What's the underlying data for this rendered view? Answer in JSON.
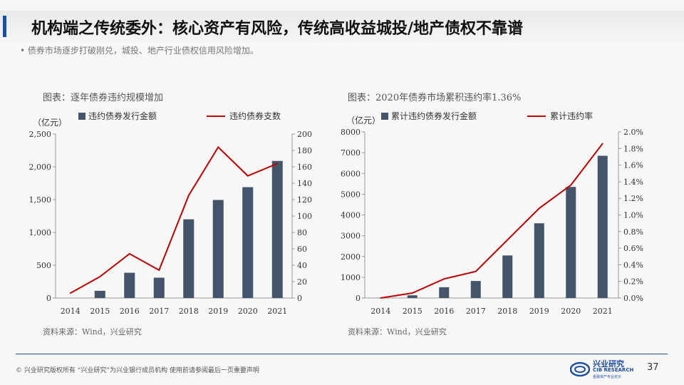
{
  "header": {
    "title": "机构端之传统委外：核心资产有风险，传统高收益城投/地产债权不靠谱",
    "bullet": "• 债券市场逐步打破刚兑，城投、地产行业债权信用风险增加。"
  },
  "left_chart": {
    "caption": "图表：逐年债券违约规模增加",
    "source": "资料来源：Wind，兴业研究"
  },
  "right_chart": {
    "caption": "图表：2020年债券市场累积违约率1.36%",
    "source": "资料来源：Wind，兴业研究"
  },
  "chart_data": [
    {
      "type": "bar+line",
      "title": "逐年债券违约规模增加",
      "categories": [
        "2014",
        "2015",
        "2016",
        "2017",
        "2018",
        "2019",
        "2020",
        "2021"
      ],
      "left_axis_unit": "（亿元）",
      "series": [
        {
          "name": "违约债券发行金额",
          "type": "bar",
          "axis": "left",
          "color": "#44546a",
          "values": [
            0,
            110,
            385,
            310,
            1200,
            1495,
            1690,
            2090
          ]
        },
        {
          "name": "违约债券支数",
          "type": "line",
          "axis": "right",
          "color": "#c00000",
          "values": [
            6,
            26,
            54,
            34,
            125,
            184,
            149,
            164
          ]
        }
      ],
      "ylim_left": [
        0,
        2500
      ],
      "yticks_left": [
        "0",
        "500",
        "1,000",
        "1,500",
        "2,000",
        "2,500"
      ],
      "ylim_right": [
        0,
        200
      ],
      "yticks_right": [
        "0",
        "20",
        "40",
        "60",
        "80",
        "100",
        "120",
        "140",
        "160",
        "180",
        "200"
      ],
      "grid": false,
      "legend": "top"
    },
    {
      "type": "bar+line",
      "title": "2020年债券市场累积违约率1.36%",
      "categories": [
        "2014",
        "2015",
        "2016",
        "2017",
        "2018",
        "2019",
        "2020",
        "2021"
      ],
      "left_axis_unit": "（亿元）",
      "series": [
        {
          "name": "累计违约债券发行金额",
          "type": "bar",
          "axis": "left",
          "color": "#44546a",
          "values": [
            10,
            130,
            520,
            820,
            2050,
            3600,
            5350,
            6850
          ]
        },
        {
          "name": "累计违约率",
          "type": "line",
          "axis": "right",
          "color": "#c00000",
          "values": [
            0.0,
            0.06,
            0.23,
            0.32,
            0.7,
            1.08,
            1.36,
            1.86
          ]
        }
      ],
      "ylim_left": [
        0,
        8000
      ],
      "yticks_left": [
        "0",
        "1000",
        "2000",
        "3000",
        "4000",
        "5000",
        "6000",
        "7000",
        "8000"
      ],
      "ylim_right": [
        0,
        2.0
      ],
      "yticks_right": [
        "0.0%",
        "0.2%",
        "0.4%",
        "0.6%",
        "0.8%",
        "1.0%",
        "1.2%",
        "1.4%",
        "1.6%",
        "1.8%",
        "2.0%"
      ],
      "grid": false,
      "legend": "top"
    }
  ],
  "footer": {
    "text": "©  兴业研究版权所有    “兴业研究”为兴业银行成员机构   使用前请参阅最后一页重要声明",
    "logo_cn": "兴业研究",
    "logo_en": "CIB RESEARCH",
    "logo_sub": "金融资产专业定价",
    "page_number": "37"
  },
  "colors": {
    "accent": "#1f4e9e",
    "bar": "#44546a",
    "line": "#c00000"
  },
  "icons": {
    "logo": "cib-research-logo-icon"
  }
}
